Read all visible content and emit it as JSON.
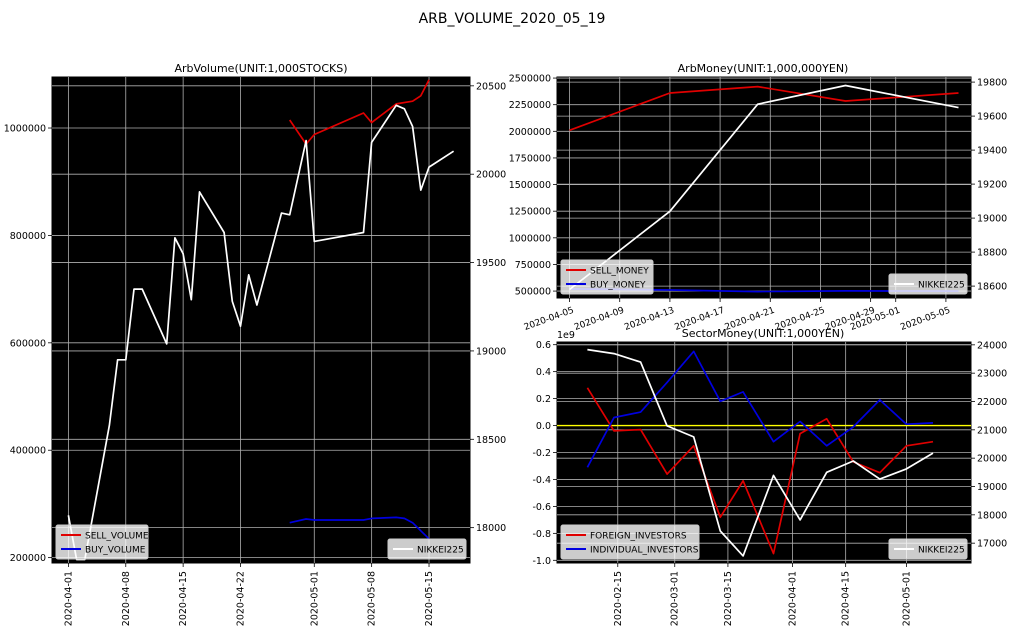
{
  "figure": {
    "suptitle": "ARB_VOLUME_2020_05_19"
  },
  "colors": {
    "sell": "#e00000",
    "buy": "#0000e0",
    "nikkei": "#ffffff",
    "zero": "#ffff00",
    "panel_bg": "#000000"
  },
  "chart_data": [
    {
      "id": "arbvolume",
      "type": "line",
      "title": "ArbVolume(UNIT:1,000STOCKS)",
      "x_type": "date",
      "xlim": [
        "2020-03-30",
        "2020-05-20"
      ],
      "xticks": [
        "2020-04-01",
        "2020-04-08",
        "2020-04-15",
        "2020-04-22",
        "2020-05-01",
        "2020-05-08",
        "2020-05-15"
      ],
      "ylim": [
        190000,
        1095000
      ],
      "yticks": [
        200000,
        400000,
        600000,
        800000,
        1000000
      ],
      "y2lim": [
        17800,
        20550
      ],
      "y2ticks": [
        18000,
        18500,
        19000,
        19500,
        20000,
        20500
      ],
      "grid": true,
      "legend_left": [
        "SELL_VOLUME",
        "BUY_VOLUME"
      ],
      "legend_right": [
        "NIKKEI225"
      ],
      "series": [
        {
          "name": "SELL_VOLUME",
          "axis": "left",
          "color": "#e00000",
          "points": [
            [
              "2020-04-28",
              1015000
            ],
            [
              "2020-04-30",
              970000
            ],
            [
              "2020-05-01",
              988000
            ],
            [
              "2020-05-07",
              1028000
            ],
            [
              "2020-05-08",
              1010000
            ],
            [
              "2020-05-11",
              1045000
            ],
            [
              "2020-05-13",
              1050000
            ],
            [
              "2020-05-14",
              1060000
            ],
            [
              "2020-05-15",
              1090000
            ]
          ]
        },
        {
          "name": "BUY_VOLUME",
          "axis": "left",
          "color": "#0000e0",
          "points": [
            [
              "2020-04-28",
              265000
            ],
            [
              "2020-04-30",
              272000
            ],
            [
              "2020-05-01",
              270000
            ],
            [
              "2020-05-07",
              270000
            ],
            [
              "2020-05-08",
              273000
            ],
            [
              "2020-05-11",
              275000
            ],
            [
              "2020-05-12",
              273000
            ],
            [
              "2020-05-13",
              265000
            ],
            [
              "2020-05-14",
              250000
            ],
            [
              "2020-05-15",
              235000
            ]
          ]
        },
        {
          "name": "NIKKEI225",
          "axis": "right",
          "color": "#ffffff",
          "points": [
            [
              "2020-04-01",
              18070
            ],
            [
              "2020-04-02",
              17820
            ],
            [
              "2020-04-03",
              17820
            ],
            [
              "2020-04-06",
              18580
            ],
            [
              "2020-04-07",
              18950
            ],
            [
              "2020-04-08",
              18950
            ],
            [
              "2020-04-09",
              19350
            ],
            [
              "2020-04-10",
              19350
            ],
            [
              "2020-04-13",
              19040
            ],
            [
              "2020-04-14",
              19640
            ],
            [
              "2020-04-15",
              19550
            ],
            [
              "2020-04-16",
              19290
            ],
            [
              "2020-04-17",
              19900
            ],
            [
              "2020-04-20",
              19670
            ],
            [
              "2020-04-21",
              19280
            ],
            [
              "2020-04-22",
              19140
            ],
            [
              "2020-04-23",
              19430
            ],
            [
              "2020-04-24",
              19260
            ],
            [
              "2020-04-27",
              19780
            ],
            [
              "2020-04-28",
              19770
            ],
            [
              "2020-04-30",
              20190
            ],
            [
              "2020-05-01",
              19620
            ],
            [
              "2020-05-07",
              19670
            ],
            [
              "2020-05-08",
              20180
            ],
            [
              "2020-05-11",
              20390
            ],
            [
              "2020-05-12",
              20370
            ],
            [
              "2020-05-13",
              20270
            ],
            [
              "2020-05-14",
              19910
            ],
            [
              "2020-05-15",
              20040
            ],
            [
              "2020-05-18",
              20130
            ]
          ]
        }
      ]
    },
    {
      "id": "arbmoney",
      "type": "line",
      "title": "ArbMoney(UNIT:1,000,000YEN)",
      "x_type": "date",
      "xlim": [
        "2020-04-04",
        "2020-05-07"
      ],
      "xticks": [
        "2020-04-05",
        "2020-04-09",
        "2020-04-13",
        "2020-04-17",
        "2020-04-21",
        "2020-04-25",
        "2020-04-29",
        "2020-05-01",
        "2020-05-05"
      ],
      "ylim": [
        435000,
        2510000
      ],
      "yticks": [
        500000,
        750000,
        1000000,
        1250000,
        1500000,
        1750000,
        2000000,
        2250000,
        2500000
      ],
      "y2lim": [
        18530,
        19830
      ],
      "y2ticks": [
        18600,
        18800,
        19000,
        19200,
        19400,
        19600,
        19800
      ],
      "grid": true,
      "legend_left": [
        "SELL_MONEY",
        "BUY_MONEY"
      ],
      "legend_right": [
        "NIKKEI225"
      ],
      "series": [
        {
          "name": "SELL_MONEY",
          "axis": "left",
          "color": "#e00000",
          "points": [
            [
              "2020-04-05",
              2010000
            ],
            [
              "2020-04-13",
              2360000
            ],
            [
              "2020-04-20",
              2420000
            ],
            [
              "2020-04-27",
              2285000
            ],
            [
              "2020-05-06",
              2360000
            ]
          ]
        },
        {
          "name": "BUY_MONEY",
          "axis": "left",
          "color": "#0000e0",
          "points": [
            [
              "2020-04-05",
              520000
            ],
            [
              "2020-04-13",
              510000
            ],
            [
              "2020-04-20",
              495000
            ],
            [
              "2020-04-27",
              502000
            ],
            [
              "2020-05-06",
              500000
            ]
          ]
        },
        {
          "name": "NIKKEI225",
          "axis": "right",
          "color": "#ffffff",
          "points": [
            [
              "2020-04-05",
              18580
            ],
            [
              "2020-04-13",
              19040
            ],
            [
              "2020-04-20",
              19670
            ],
            [
              "2020-04-27",
              19780
            ],
            [
              "2020-05-06",
              19650
            ]
          ]
        }
      ]
    },
    {
      "id": "sectormoney",
      "type": "line",
      "title": "SectorMoney(UNIT:1,000YEN)",
      "x_type": "date",
      "xlim": [
        "2020-01-30",
        "2020-05-18"
      ],
      "xticks": [
        "2020-02-15",
        "2020-03-01",
        "2020-03-15",
        "2020-04-01",
        "2020-04-15",
        "2020-05-01"
      ],
      "ylim": [
        -1.02,
        0.62
      ],
      "yticks": [
        -1.0,
        -0.8,
        -0.6,
        -0.4,
        -0.2,
        0.0,
        0.2,
        0.4,
        0.6
      ],
      "yoffset_label": "1e9",
      "y2lim": [
        16300,
        24100
      ],
      "y2ticks": [
        17000,
        18000,
        19000,
        20000,
        21000,
        22000,
        23000,
        24000
      ],
      "grid": true,
      "zero_line": 0,
      "legend_left": [
        "FOREIGN_INVESTORS",
        "INDIVIDUAL_INVESTORS"
      ],
      "legend_right": [
        "NIKKEI225"
      ],
      "series": [
        {
          "name": "FOREIGN_INVESTORS",
          "axis": "left",
          "color": "#e00000",
          "points": [
            [
              "2020-02-07",
              0.28
            ],
            [
              "2020-02-14",
              -0.04
            ],
            [
              "2020-02-21",
              -0.03
            ],
            [
              "2020-02-28",
              -0.36
            ],
            [
              "2020-03-06",
              -0.15
            ],
            [
              "2020-03-13",
              -0.68
            ],
            [
              "2020-03-19",
              -0.41
            ],
            [
              "2020-03-27",
              -0.95
            ],
            [
              "2020-04-03",
              -0.06
            ],
            [
              "2020-04-10",
              0.05
            ],
            [
              "2020-04-17",
              -0.27
            ],
            [
              "2020-04-24",
              -0.35
            ],
            [
              "2020-05-01",
              -0.15
            ],
            [
              "2020-05-08",
              -0.12
            ]
          ]
        },
        {
          "name": "INDIVIDUAL_INVESTORS",
          "axis": "left",
          "color": "#0000e0",
          "points": [
            [
              "2020-02-07",
              -0.31
            ],
            [
              "2020-02-14",
              0.06
            ],
            [
              "2020-02-21",
              0.1
            ],
            [
              "2020-02-28",
              0.32
            ],
            [
              "2020-03-06",
              0.55
            ],
            [
              "2020-03-13",
              0.18
            ],
            [
              "2020-03-19",
              0.25
            ],
            [
              "2020-03-27",
              -0.12
            ],
            [
              "2020-04-03",
              0.03
            ],
            [
              "2020-04-10",
              -0.15
            ],
            [
              "2020-04-17",
              -0.01
            ],
            [
              "2020-04-24",
              0.19
            ],
            [
              "2020-05-01",
              0.01
            ],
            [
              "2020-05-08",
              0.02
            ]
          ]
        },
        {
          "name": "NIKKEI225",
          "axis": "right",
          "color": "#ffffff",
          "points": [
            [
              "2020-02-07",
              23830
            ],
            [
              "2020-02-14",
              23690
            ],
            [
              "2020-02-21",
              23390
            ],
            [
              "2020-02-28",
              21140
            ],
            [
              "2020-03-06",
              20750
            ],
            [
              "2020-03-13",
              17430
            ],
            [
              "2020-03-19",
              16550
            ],
            [
              "2020-03-27",
              19390
            ],
            [
              "2020-04-03",
              17820
            ],
            [
              "2020-04-10",
              19500
            ],
            [
              "2020-04-17",
              19900
            ],
            [
              "2020-04-24",
              19260
            ],
            [
              "2020-05-01",
              19620
            ],
            [
              "2020-05-08",
              20180
            ]
          ]
        }
      ]
    }
  ]
}
